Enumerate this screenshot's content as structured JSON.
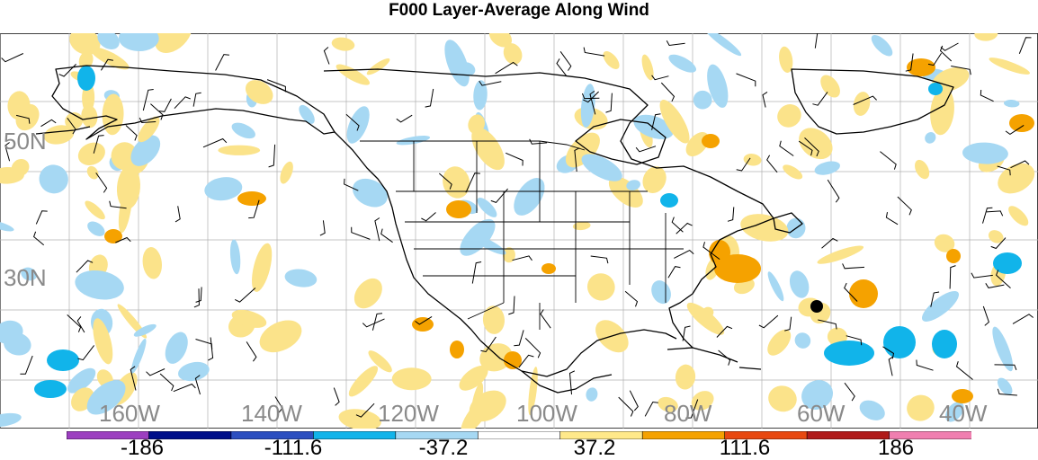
{
  "title": "F000 Layer-Average Along Wind",
  "lat_labels": [
    "50N",
    "30N"
  ],
  "lon_labels": [
    "160W",
    "140W",
    "120W",
    "100W",
    "80W",
    "60W",
    "40W"
  ],
  "colorbar": {
    "labels": [
      "-186",
      "-111.6",
      "-37.2",
      "37.2",
      "111.6",
      "186"
    ],
    "colors": [
      "#9c3fc0",
      "#000f8a",
      "#2c4fc0",
      "#11b4ea",
      "#a6d8f3",
      "#ffffff",
      "#ffe98a",
      "#f5a200",
      "#e84810",
      "#b01a1a",
      "#f07fb0"
    ]
  },
  "map_colors": {
    "light_blue": "#a6d8f3",
    "blue": "#11b4ea",
    "light_yellow": "#fbe38a",
    "orange": "#f5a200",
    "grid": "#b0b0b0",
    "coast": "#000000"
  }
}
